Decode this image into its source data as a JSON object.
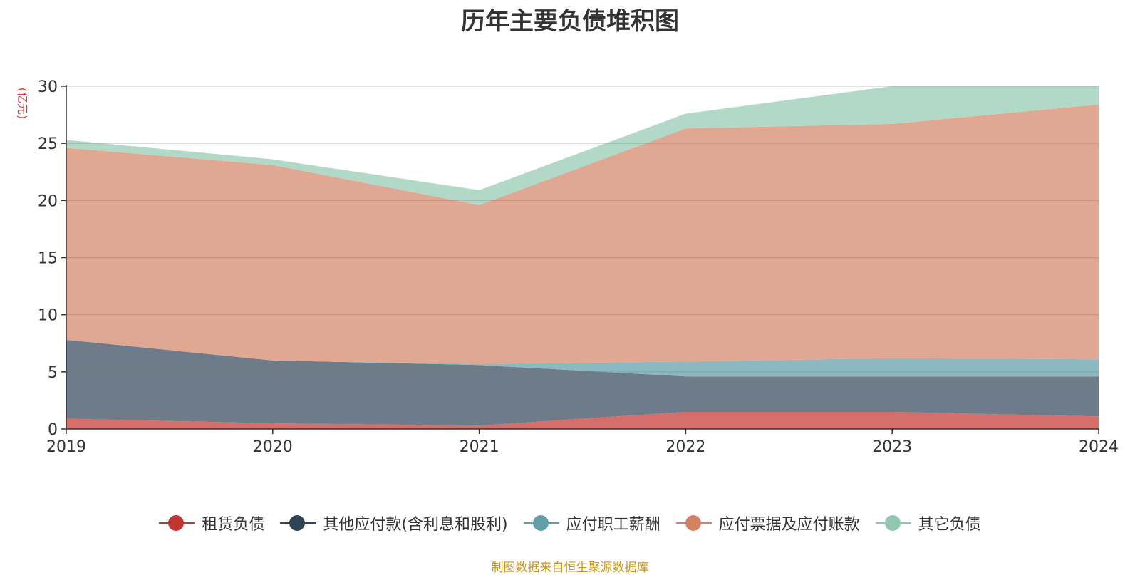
{
  "title": "历年主要负债堆积图",
  "source": "制图数据来自恒生聚源数据库",
  "chart_data": {
    "type": "area",
    "stacked": true,
    "unit_label": "(亿元)",
    "categories": [
      "2019",
      "2020",
      "2021",
      "2022",
      "2023",
      "2024"
    ],
    "ylim": [
      0,
      30
    ],
    "yticks": [
      0,
      5,
      10,
      15,
      20,
      25,
      30
    ],
    "grid": true,
    "legend_position": "bottom",
    "series": [
      {
        "name": "租赁负债",
        "color": "#c23531",
        "fill": "#d46f6b",
        "values": [
          0.9,
          0.5,
          0.3,
          1.5,
          1.5,
          1.1
        ]
      },
      {
        "name": "其他应付款(含利息和股利)",
        "color": "#2f4554",
        "fill": "#6e7c89",
        "values": [
          6.9,
          5.5,
          5.3,
          3.1,
          3.1,
          3.5
        ]
      },
      {
        "name": "应付职工薪酬",
        "color": "#61a0a8",
        "fill": "#8cb9c1",
        "values": [
          0.0,
          0.0,
          0.1,
          1.3,
          1.6,
          1.5
        ]
      },
      {
        "name": "应付票据及应付账款",
        "color": "#d48265",
        "fill": "#e0a792",
        "values": [
          16.8,
          17.1,
          13.9,
          20.4,
          20.5,
          22.3
        ]
      },
      {
        "name": "其它负债",
        "color": "#91c7ae",
        "fill": "#b2d9c8",
        "values": [
          0.7,
          0.5,
          1.3,
          1.3,
          3.3,
          1.6
        ]
      }
    ]
  }
}
